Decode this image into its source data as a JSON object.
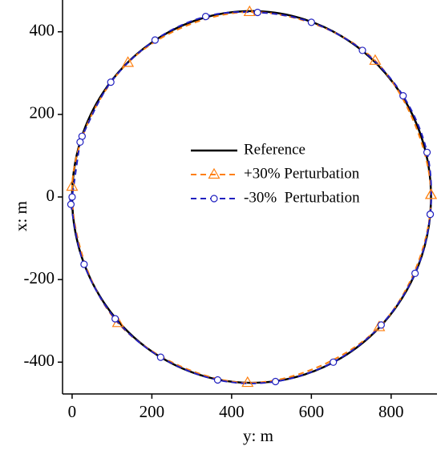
{
  "chart_data": {
    "type": "line",
    "xlabel": "y: m",
    "ylabel": "x: m",
    "xlim": [
      -24,
      915
    ],
    "ylim": [
      -477,
      477
    ],
    "xticks": [
      0,
      200,
      400,
      600,
      800
    ],
    "yticks": [
      -400,
      -200,
      0,
      200,
      400
    ],
    "series": [
      {
        "name": "Reference",
        "color": "#000000",
        "dash": false,
        "marker": "none",
        "x": [
          900,
          884.7,
          839.7,
          768.2,
          675,
          566.5,
          450,
          333.5,
          225,
          131.8,
          60.3,
          15.3,
          0,
          15.3,
          60.3,
          131.8,
          225,
          333.5,
          450,
          566.5,
          675,
          768.2,
          839.7,
          884.7,
          900
        ],
        "values": [
          0,
          116.5,
          225,
          318.2,
          389.7,
          434.7,
          450,
          434.7,
          389.7,
          318.2,
          225,
          116.5,
          0,
          -116.5,
          -225,
          -318.2,
          -389.7,
          -434.7,
          -450,
          -434.7,
          -389.7,
          -318.2,
          -225,
          -116.5,
          0
        ]
      },
      {
        "name": "+30% Perturbation",
        "color": "#ff7f0e",
        "dash": true,
        "marker": "triangle",
        "x": [
          900,
          760,
          445,
          140,
          0,
          115,
          440,
          770,
          900
        ],
        "values": [
          5,
          330,
          448,
          325,
          25,
          -305,
          -450,
          -315,
          5
        ]
      },
      {
        "name": "-30%  Perturbation",
        "color": "#2020c0",
        "dash": true,
        "marker": "circle",
        "x": [
          898,
          890,
          830,
          728,
          600,
          465,
          335,
          208,
          97,
          25,
          20,
          0,
          -3,
          30,
          108,
          222,
          365,
          510,
          655,
          775,
          860,
          898
        ],
        "values": [
          -42,
          108,
          245,
          355,
          423,
          447,
          437,
          380,
          278,
          147,
          133,
          0,
          -18,
          -163,
          -295,
          -388,
          -443,
          -447,
          -400,
          -310,
          -185,
          -42
        ]
      }
    ]
  }
}
